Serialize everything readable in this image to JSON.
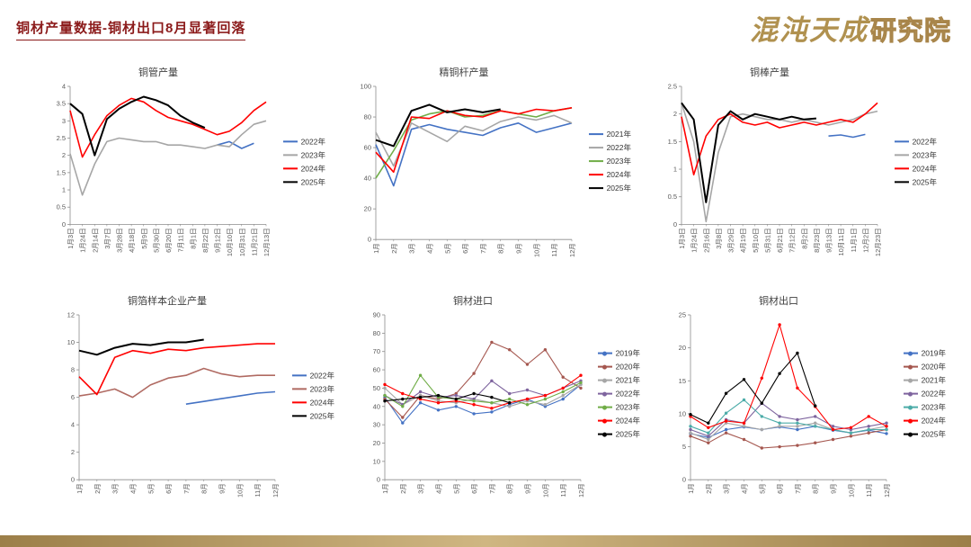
{
  "header": {
    "title": "铜材产量数据-铜材出口8月显著回落",
    "title_color": "#8B1A1A"
  },
  "logo": {
    "part1": "混沌天成",
    "part2": "研究院",
    "color": "#B0914F"
  },
  "footer": {
    "bar_color": "#B59A62"
  },
  "chart_data": [
    {
      "id": "copper-tube-output",
      "type": "line",
      "title": "铜管产量",
      "legend_position": "right",
      "markers": false,
      "ylim": [
        0,
        4
      ],
      "y_ticks": [
        0,
        0.5,
        1,
        1.5,
        2,
        2.5,
        3,
        3.5,
        4
      ],
      "x_labels": [
        "1月3日",
        "1月24日",
        "2月14日",
        "3月7日",
        "3月28日",
        "4月18日",
        "5月9日",
        "5月30日",
        "6月20日",
        "7月11日",
        "8月1日",
        "8月22日",
        "9月12日",
        "10月10日",
        "10月31日",
        "11月21日",
        "12月13日"
      ],
      "series": [
        {
          "name": "2022年",
          "color": "#4472C4",
          "values": [
            null,
            null,
            null,
            null,
            null,
            null,
            null,
            null,
            null,
            null,
            null,
            null,
            2.3,
            2.4,
            2.2,
            2.35,
            null
          ]
        },
        {
          "name": "2023年",
          "color": "#A6A6A6",
          "values": [
            2.05,
            0.85,
            1.75,
            2.4,
            2.5,
            2.45,
            2.4,
            2.4,
            2.3,
            2.3,
            2.25,
            2.2,
            2.3,
            2.25,
            2.6,
            2.9,
            3.0
          ]
        },
        {
          "name": "2024年",
          "color": "#FF0000",
          "values": [
            3.3,
            1.95,
            2.6,
            3.15,
            3.45,
            3.65,
            3.55,
            3.3,
            3.1,
            3.0,
            2.9,
            2.75,
            2.6,
            2.7,
            2.95,
            3.3,
            3.55
          ]
        },
        {
          "name": "2025年",
          "color": "#000000",
          "values": [
            3.5,
            3.2,
            2.0,
            3.05,
            3.35,
            3.55,
            3.7,
            3.6,
            3.45,
            3.15,
            2.95,
            2.8,
            null,
            null,
            null,
            null,
            null
          ]
        }
      ]
    },
    {
      "id": "refined-copper-rod-output",
      "type": "line",
      "title": "精铜杆产量",
      "legend_position": "right",
      "markers": false,
      "ylim": [
        0,
        100
      ],
      "y_ticks": [
        0,
        20,
        40,
        60,
        80,
        100
      ],
      "x_labels": [
        "1月",
        "2月",
        "3月",
        "4月",
        "5月",
        "6月",
        "7月",
        "8月",
        "9月",
        "10月",
        "11月",
        "12月"
      ],
      "series": [
        {
          "name": "2021年",
          "color": "#4472C4",
          "values": [
            62,
            35,
            72,
            75,
            72,
            70,
            68,
            73,
            76,
            70,
            73,
            76
          ]
        },
        {
          "name": "2022年",
          "color": "#A6A6A6",
          "values": [
            70,
            48,
            76,
            70,
            64,
            74,
            71,
            77,
            80,
            78,
            81,
            76
          ]
        },
        {
          "name": "2023年",
          "color": "#70AD47",
          "values": [
            40,
            58,
            78,
            82,
            84,
            80,
            81,
            84,
            82,
            80,
            84,
            86
          ]
        },
        {
          "name": "2024年",
          "color": "#FF0000",
          "values": [
            57,
            44,
            80,
            79,
            84,
            81,
            80,
            84,
            82,
            85,
            84,
            86
          ]
        },
        {
          "name": "2025年",
          "color": "#000000",
          "values": [
            65,
            61,
            84,
            88,
            83,
            85,
            83,
            85,
            null,
            null,
            null,
            null
          ]
        }
      ]
    },
    {
      "id": "copper-bar-output",
      "type": "line",
      "title": "铜棒产量",
      "legend_position": "right",
      "markers": false,
      "ylim": [
        0,
        2.5
      ],
      "y_ticks": [
        0,
        0.5,
        1,
        1.5,
        2,
        2.5
      ],
      "x_labels": [
        "1月3日",
        "1月24日",
        "2月16日",
        "3月8日",
        "3月29日",
        "4月19日",
        "5月10日",
        "5月31日",
        "6月21日",
        "7月12日",
        "8月2日",
        "8月23日",
        "9月13日",
        "10月11日",
        "11月1日",
        "12月2日",
        "12月23日"
      ],
      "series": [
        {
          "name": "2022年",
          "color": "#4472C4",
          "values": [
            null,
            null,
            null,
            null,
            null,
            null,
            null,
            null,
            null,
            null,
            null,
            null,
            1.6,
            1.62,
            1.58,
            1.63,
            null
          ]
        },
        {
          "name": "2023年",
          "color": "#A6A6A6",
          "values": [
            2.2,
            1.5,
            0.05,
            1.3,
            1.95,
            2.0,
            1.95,
            1.9,
            1.9,
            1.85,
            1.9,
            1.85,
            1.8,
            1.85,
            1.9,
            2.0,
            2.05
          ]
        },
        {
          "name": "2024年",
          "color": "#FF0000",
          "values": [
            1.95,
            0.9,
            1.6,
            1.9,
            2.0,
            1.85,
            1.8,
            1.85,
            1.75,
            1.8,
            1.85,
            1.8,
            1.85,
            1.9,
            1.85,
            2.0,
            2.2
          ]
        },
        {
          "name": "2025年",
          "color": "#000000",
          "values": [
            2.2,
            1.9,
            0.4,
            1.8,
            2.05,
            1.9,
            2.0,
            1.95,
            1.9,
            1.95,
            1.9,
            1.92,
            null,
            null,
            null,
            null,
            null
          ]
        }
      ]
    },
    {
      "id": "copper-foil-sample-output",
      "type": "line",
      "title": "铜箔样本企业产量",
      "legend_position": "right",
      "markers": false,
      "ylim": [
        0,
        12
      ],
      "y_ticks": [
        0,
        2,
        4,
        6,
        8,
        10,
        12
      ],
      "x_labels": [
        "1月",
        "2月",
        "3月",
        "4月",
        "5月",
        "6月",
        "7月",
        "8月",
        "9月",
        "10月",
        "11月",
        "12月"
      ],
      "series": [
        {
          "name": "2022年",
          "color": "#4472C4",
          "values": [
            null,
            null,
            null,
            null,
            null,
            null,
            5.5,
            5.7,
            5.9,
            6.1,
            6.3,
            6.4
          ]
        },
        {
          "name": "2023年",
          "color": "#B06A62",
          "values": [
            6.1,
            6.3,
            6.6,
            6.0,
            6.9,
            7.4,
            7.6,
            8.1,
            7.7,
            7.5,
            7.6,
            7.6
          ]
        },
        {
          "name": "2024年",
          "color": "#FF0000",
          "values": [
            7.5,
            6.2,
            8.9,
            9.4,
            9.2,
            9.5,
            9.4,
            9.6,
            9.7,
            9.8,
            9.9,
            9.9
          ]
        },
        {
          "name": "2025年",
          "color": "#000000",
          "values": [
            9.4,
            9.1,
            9.6,
            9.9,
            9.8,
            10.0,
            10.0,
            10.2,
            null,
            null,
            null,
            null
          ]
        }
      ]
    },
    {
      "id": "copper-imports",
      "type": "line",
      "title": "铜材进口",
      "legend_position": "right",
      "markers": true,
      "ylim": [
        0,
        90
      ],
      "y_ticks": [
        0,
        10,
        20,
        30,
        40,
        50,
        60,
        70,
        80,
        90
      ],
      "x_labels": [
        "1月",
        "2月",
        "3月",
        "4月",
        "5月",
        "6月",
        "7月",
        "8月",
        "9月",
        "10月",
        "11月",
        "12月"
      ],
      "series": [
        {
          "name": "2019年",
          "color": "#4472C4",
          "values": [
            45,
            31,
            42,
            38,
            40,
            36,
            37,
            41,
            44,
            40,
            44,
            52
          ]
        },
        {
          "name": "2020年",
          "color": "#A5574F",
          "values": [
            44,
            34,
            46,
            44,
            47,
            58,
            75,
            71,
            63,
            71,
            56,
            50
          ]
        },
        {
          "name": "2021年",
          "color": "#A6A6A6",
          "values": [
            50,
            41,
            46,
            43,
            42,
            44,
            42,
            40,
            43,
            41,
            46,
            52
          ]
        },
        {
          "name": "2022年",
          "color": "#7E649E",
          "values": [
            46,
            41,
            48,
            45,
            46,
            44,
            54,
            47,
            49,
            46,
            50,
            54
          ]
        },
        {
          "name": "2023年",
          "color": "#70AD47",
          "values": [
            46,
            40,
            57,
            45,
            44,
            43,
            42,
            44,
            41,
            44,
            48,
            53
          ]
        },
        {
          "name": "2024年",
          "color": "#FF0000",
          "values": [
            52,
            47,
            44,
            42,
            43,
            41,
            39,
            42,
            44,
            46,
            50,
            57
          ]
        },
        {
          "name": "2025年",
          "color": "#000000",
          "values": [
            43,
            44,
            45,
            46,
            44,
            47,
            45,
            42,
            null,
            null,
            null,
            null
          ]
        }
      ]
    },
    {
      "id": "copper-exports",
      "type": "line",
      "title": "铜材出口",
      "legend_position": "right",
      "markers": true,
      "ylim": [
        0,
        25
      ],
      "y_ticks": [
        0,
        5,
        10,
        15,
        20,
        25
      ],
      "x_labels": [
        "1月",
        "2月",
        "3月",
        "4月",
        "5月",
        "6月",
        "7月",
        "8月",
        "9月",
        "10月",
        "11月",
        "12月"
      ],
      "series": [
        {
          "name": "2019年",
          "color": "#4472C4",
          "values": [
            7.0,
            6.4,
            7.6,
            8.0,
            7.6,
            8.0,
            7.6,
            8.1,
            7.5,
            7.1,
            7.5,
            7.0
          ]
        },
        {
          "name": "2020年",
          "color": "#A5574F",
          "values": [
            6.6,
            5.6,
            7.1,
            6.1,
            4.8,
            5.0,
            5.2,
            5.6,
            6.1,
            6.6,
            7.1,
            7.6
          ]
        },
        {
          "name": "2021年",
          "color": "#A6A6A6",
          "values": [
            7.1,
            6.1,
            8.6,
            8.1,
            7.6,
            8.1,
            8.1,
            8.6,
            7.6,
            7.1,
            7.6,
            8.1
          ]
        },
        {
          "name": "2022年",
          "color": "#7E649E",
          "values": [
            7.6,
            6.6,
            9.1,
            8.6,
            11.6,
            9.6,
            9.1,
            9.6,
            8.1,
            7.6,
            8.1,
            8.6
          ]
        },
        {
          "name": "2023年",
          "color": "#4CACA8",
          "values": [
            8.1,
            7.1,
            10.1,
            12.1,
            9.6,
            8.6,
            8.6,
            8.1,
            7.6,
            7.1,
            7.6,
            7.6
          ]
        },
        {
          "name": "2024年",
          "color": "#FF0000",
          "values": [
            9.6,
            7.9,
            8.9,
            8.6,
            15.4,
            23.5,
            13.9,
            11.1,
            7.6,
            7.9,
            9.6,
            8.1
          ]
        },
        {
          "name": "2025年",
          "color": "#000000",
          "values": [
            9.9,
            8.6,
            13.1,
            15.2,
            11.6,
            16.1,
            19.2,
            11.2,
            null,
            null,
            null,
            null
          ]
        }
      ]
    }
  ]
}
